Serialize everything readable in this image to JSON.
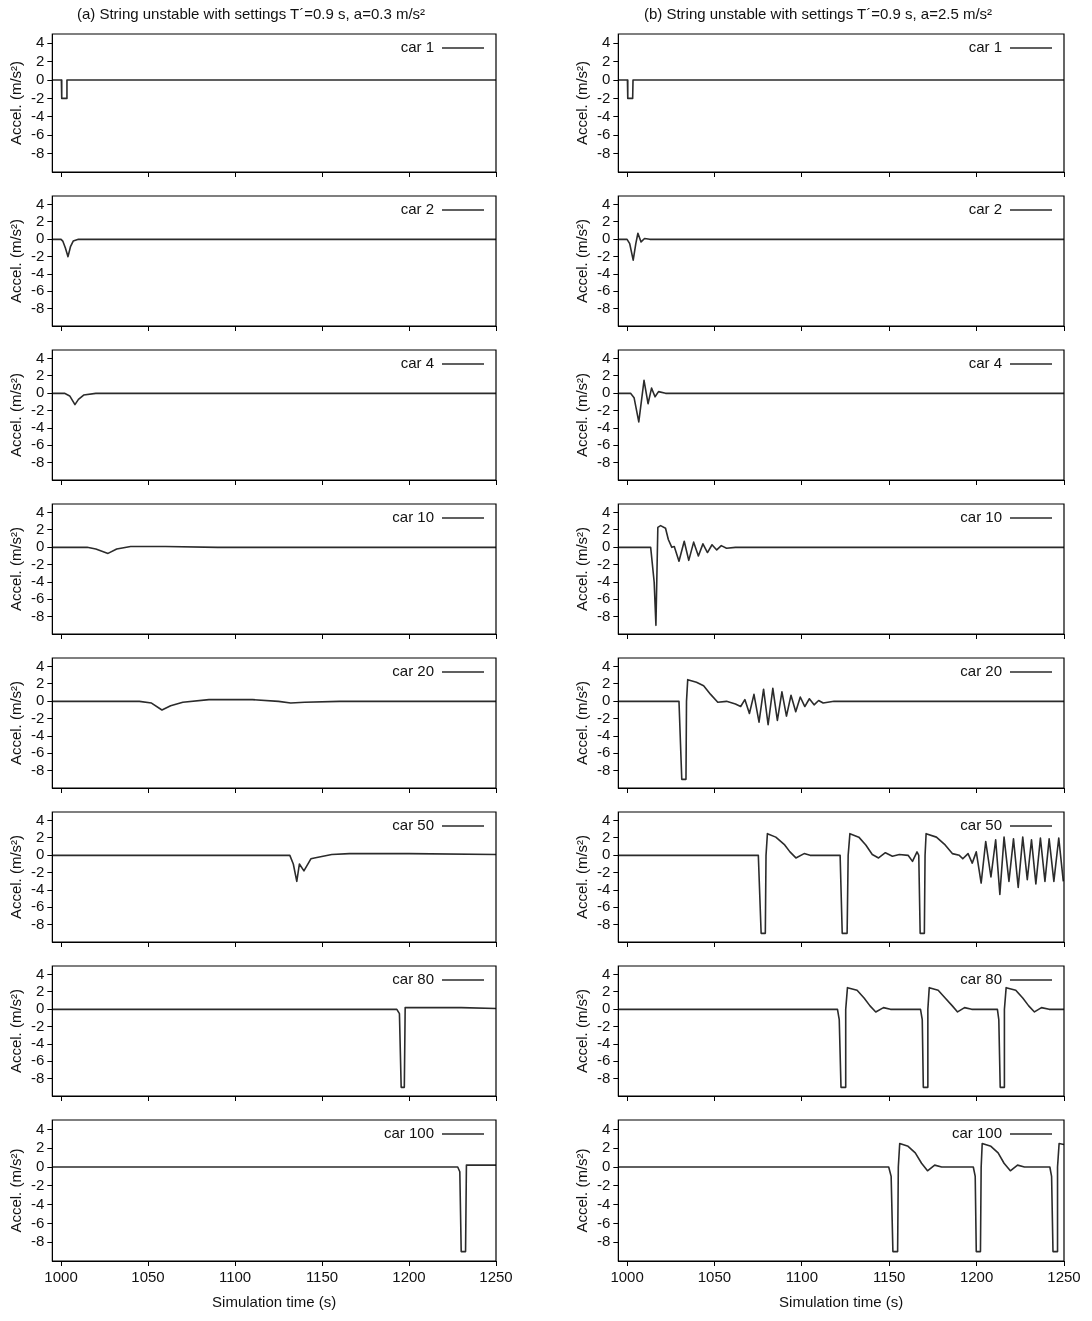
{
  "chart_data": [
    {
      "type": "line",
      "title": "(a) String unstable with settings T´=0.9 s, a=0.3 m/s²",
      "ylabel": "Accel. (m/s²)",
      "xlim": [
        995,
        1250
      ],
      "ylim": [
        -10,
        5
      ],
      "xticks": [
        1000,
        1050,
        1100,
        1150,
        1200,
        1250
      ],
      "yticks": [
        -8,
        -6,
        -4,
        -2,
        0,
        2,
        4
      ],
      "tick_labels": "y",
      "legend": "top right",
      "series": [
        {
          "name": "car 1",
          "color": "#2b2b2b",
          "x": [
            995,
            1000.2,
            1000.4,
            1003.2,
            1003.4,
            1250
          ],
          "values": [
            0,
            0,
            -2,
            -2,
            0,
            0
          ]
        }
      ]
    },
    {
      "type": "line",
      "ylabel": "Accel. (m/s²)",
      "xlim": [
        995,
        1250
      ],
      "ylim": [
        -10,
        5
      ],
      "xticks": [
        1000,
        1050,
        1100,
        1150,
        1200,
        1250
      ],
      "yticks": [
        -8,
        -6,
        -4,
        -2,
        0,
        2,
        4
      ],
      "tick_labels": "y",
      "legend": "top right",
      "series": [
        {
          "name": "car 2",
          "color": "#2b2b2b",
          "x": [
            995,
            1000,
            1001,
            1002.5,
            1004,
            1005.5,
            1007,
            1010,
            1250
          ],
          "values": [
            0,
            0,
            -0.2,
            -1,
            -2,
            -0.8,
            -0.2,
            0,
            0
          ]
        }
      ]
    },
    {
      "type": "line",
      "ylabel": "Accel. (m/s²)",
      "xlim": [
        995,
        1250
      ],
      "ylim": [
        -10,
        5
      ],
      "xticks": [
        1000,
        1050,
        1100,
        1150,
        1200,
        1250
      ],
      "yticks": [
        -8,
        -6,
        -4,
        -2,
        0,
        2,
        4
      ],
      "tick_labels": "y",
      "legend": "top right",
      "series": [
        {
          "name": "car 4",
          "color": "#2b2b2b",
          "x": [
            995,
            1002,
            1005,
            1008,
            1010,
            1013,
            1020,
            1250
          ],
          "values": [
            0,
            0,
            -0.3,
            -1.3,
            -0.7,
            -0.2,
            0,
            0
          ]
        }
      ]
    },
    {
      "type": "line",
      "ylabel": "Accel. (m/s²)",
      "xlim": [
        995,
        1250
      ],
      "ylim": [
        -10,
        5
      ],
      "xticks": [
        1000,
        1050,
        1100,
        1150,
        1200,
        1250
      ],
      "yticks": [
        -8,
        -6,
        -4,
        -2,
        0,
        2,
        4
      ],
      "tick_labels": "y",
      "legend": "top right",
      "series": [
        {
          "name": "car 10",
          "color": "#2b2b2b",
          "x": [
            995,
            1015,
            1020,
            1027,
            1032,
            1040,
            1060,
            1090,
            1250
          ],
          "values": [
            0,
            0,
            -0.2,
            -0.7,
            -0.2,
            0.1,
            0.1,
            0,
            0
          ]
        }
      ]
    },
    {
      "type": "line",
      "ylabel": "Accel. (m/s²)",
      "xlim": [
        995,
        1250
      ],
      "ylim": [
        -10,
        5
      ],
      "xticks": [
        1000,
        1050,
        1100,
        1150,
        1200,
        1250
      ],
      "yticks": [
        -8,
        -6,
        -4,
        -2,
        0,
        2,
        4
      ],
      "tick_labels": "y",
      "legend": "top right",
      "series": [
        {
          "name": "car 20",
          "color": "#2b2b2b",
          "x": [
            995,
            1045,
            1052,
            1058,
            1063,
            1070,
            1085,
            1110,
            1125,
            1132,
            1140,
            1160,
            1250
          ],
          "values": [
            0,
            0,
            -0.2,
            -1,
            -0.5,
            -0.1,
            0.2,
            0.2,
            0,
            -0.2,
            -0.1,
            0,
            0
          ]
        }
      ]
    },
    {
      "type": "line",
      "ylabel": "Accel. (m/s²)",
      "xlim": [
        995,
        1250
      ],
      "ylim": [
        -10,
        5
      ],
      "xticks": [
        1000,
        1050,
        1100,
        1150,
        1200,
        1250
      ],
      "yticks": [
        -8,
        -6,
        -4,
        -2,
        0,
        2,
        4
      ],
      "tick_labels": "y",
      "legend": "top right",
      "series": [
        {
          "name": "car 50",
          "color": "#2b2b2b",
          "x": [
            995,
            1131.5,
            1133.5,
            1135.5,
            1137,
            1139.6,
            1143.6,
            1145.6,
            1155.6,
            1165.7,
            1200,
            1250
          ],
          "values": [
            0,
            0,
            -1,
            -3,
            -1,
            -1.8,
            -0.4,
            -0.3,
            0.1,
            0.2,
            0.2,
            0.1
          ]
        }
      ]
    },
    {
      "type": "line",
      "ylabel": "Accel. (m/s²)",
      "xlim": [
        995,
        1250
      ],
      "ylim": [
        -10,
        5
      ],
      "xticks": [
        1000,
        1050,
        1100,
        1150,
        1200,
        1250
      ],
      "yticks": [
        -8,
        -6,
        -4,
        -2,
        0,
        2,
        4
      ],
      "tick_labels": "y",
      "legend": "top right",
      "series": [
        {
          "name": "car 80",
          "color": "#2b2b2b",
          "x": [
            995,
            1193,
            1194.5,
            1195.5,
            1197.3,
            1197.8,
            1210,
            1230,
            1250
          ],
          "values": [
            0,
            0,
            -0.5,
            -9,
            -9,
            0.2,
            0.2,
            0.2,
            0.1
          ]
        }
      ]
    },
    {
      "type": "line",
      "xlabel": "Simulation time (s)",
      "ylabel": "Accel. (m/s²)",
      "xlim": [
        995,
        1250
      ],
      "ylim": [
        -10,
        5
      ],
      "xticks": [
        1000,
        1050,
        1100,
        1150,
        1200,
        1250
      ],
      "yticks": [
        -8,
        -6,
        -4,
        -2,
        0,
        2,
        4
      ],
      "legend": "top right",
      "series": [
        {
          "name": "car 100",
          "color": "#2b2b2b",
          "x": [
            995,
            1228,
            1229.2,
            1230,
            1232.5,
            1233,
            1250
          ],
          "values": [
            0,
            0,
            -0.5,
            -9,
            -9,
            0.2,
            0.2
          ]
        }
      ]
    },
    {
      "type": "line",
      "title": "(b) String unstable with settings T´=0.9 s, a=2.5 m/s²",
      "ylabel": "Accel. (m/s²)",
      "xlim": [
        995,
        1250
      ],
      "ylim": [
        -10,
        5
      ],
      "xticks": [
        1000,
        1050,
        1100,
        1150,
        1200,
        1250
      ],
      "yticks": [
        -8,
        -6,
        -4,
        -2,
        0,
        2,
        4
      ],
      "tick_labels": "y",
      "legend": "top right",
      "series": [
        {
          "name": "car 1",
          "color": "#2b2b2b",
          "x": [
            995,
            1000.2,
            1000.4,
            1003.2,
            1003.4,
            1250
          ],
          "values": [
            0,
            0,
            -2,
            -2,
            0,
            0
          ]
        }
      ]
    },
    {
      "type": "line",
      "ylabel": "Accel. (m/s²)",
      "xlim": [
        995,
        1250
      ],
      "ylim": [
        -10,
        5
      ],
      "xticks": [
        1000,
        1050,
        1100,
        1150,
        1200,
        1250
      ],
      "yticks": [
        -8,
        -6,
        -4,
        -2,
        0,
        2,
        4
      ],
      "tick_labels": "y",
      "legend": "top right",
      "series": [
        {
          "name": "car 2",
          "color": "#2b2b2b",
          "x": [
            995,
            1000,
            1001.5,
            1003.5,
            1005,
            1006.2,
            1008,
            1010,
            1013,
            1250
          ],
          "values": [
            0,
            0,
            -0.5,
            -2.4,
            -0.5,
            0.7,
            -0.3,
            0.1,
            0,
            0
          ]
        }
      ]
    },
    {
      "type": "line",
      "ylabel": "Accel. (m/s²)",
      "xlim": [
        995,
        1250
      ],
      "ylim": [
        -10,
        5
      ],
      "xticks": [
        1000,
        1050,
        1100,
        1150,
        1200,
        1250
      ],
      "yticks": [
        -8,
        -6,
        -4,
        -2,
        0,
        2,
        4
      ],
      "tick_labels": "y",
      "legend": "top right",
      "series": [
        {
          "name": "car 4",
          "color": "#2b2b2b",
          "x": [
            995,
            1002,
            1004,
            1006.7,
            1009.7,
            1012,
            1014,
            1016,
            1018,
            1022,
            1250
          ],
          "values": [
            0,
            0,
            -0.5,
            -3.3,
            1.5,
            -1.2,
            0.6,
            -0.4,
            0.2,
            0,
            0
          ]
        }
      ]
    },
    {
      "type": "line",
      "ylabel": "Accel. (m/s²)",
      "xlim": [
        995,
        1250
      ],
      "ylim": [
        -10,
        5
      ],
      "xticks": [
        1000,
        1050,
        1100,
        1150,
        1200,
        1250
      ],
      "yticks": [
        -8,
        -6,
        -4,
        -2,
        0,
        2,
        4
      ],
      "tick_labels": "y",
      "legend": "top right",
      "series": [
        {
          "name": "car 10",
          "color": "#2b2b2b",
          "x": [
            995,
            1013.5,
            1015.5,
            1016.5,
            1017.6,
            1019.2,
            1022,
            1023.6,
            1025.6,
            1027,
            1029.7,
            1032.7,
            1035.3,
            1038.1,
            1040.8,
            1043.4,
            1046,
            1048.6,
            1051.3,
            1053.9,
            1056.9,
            1062,
            1250
          ],
          "values": [
            0,
            0,
            -4,
            -9,
            2.3,
            2.5,
            2.2,
            0.9,
            0,
            0.1,
            -1.6,
            0.7,
            -1.5,
            0.6,
            -1,
            0.4,
            -0.6,
            0.3,
            -0.3,
            0.2,
            -0.1,
            0,
            0
          ]
        }
      ]
    },
    {
      "type": "line",
      "ylabel": "Accel. (m/s²)",
      "xlim": [
        995,
        1250
      ],
      "ylim": [
        -10,
        5
      ],
      "xticks": [
        1000,
        1050,
        1100,
        1150,
        1200,
        1250
      ],
      "yticks": [
        -8,
        -6,
        -4,
        -2,
        0,
        2,
        4
      ],
      "tick_labels": "y",
      "legend": "top right",
      "series": [
        {
          "name": "car 20",
          "color": "#2b2b2b",
          "x": [
            995,
            1029.7,
            1031.3,
            1033.7,
            1034,
            1034.7,
            1039.7,
            1043.8,
            1047.8,
            1051.9,
            1056.9,
            1062,
            1065,
            1067.4,
            1070,
            1072.6,
            1075.5,
            1078.1,
            1080.7,
            1083.4,
            1086,
            1088.6,
            1091.2,
            1093.8,
            1096.5,
            1099.1,
            1101.7,
            1104.3,
            1107,
            1109.6,
            1112.2,
            1118.4,
            1250
          ],
          "values": [
            0,
            0,
            -9,
            -9,
            0,
            2.5,
            2.2,
            1.8,
            0.8,
            -0.1,
            0,
            -0.3,
            -0.6,
            0.2,
            -1.4,
            0.8,
            -2.4,
            1.4,
            -2.7,
            1.5,
            -2.2,
            1.1,
            -1.7,
            0.7,
            -1.2,
            0.5,
            -0.6,
            0.3,
            -0.4,
            0.1,
            -0.2,
            0,
            0
          ]
        }
      ]
    },
    {
      "type": "line",
      "ylabel": "Accel. (m/s²)",
      "xlim": [
        995,
        1250
      ],
      "ylim": [
        -10,
        5
      ],
      "xticks": [
        1000,
        1050,
        1100,
        1150,
        1200,
        1250
      ],
      "yticks": [
        -8,
        -6,
        -4,
        -2,
        0,
        2,
        4
      ],
      "tick_labels": "y",
      "legend": "top right",
      "series": [
        {
          "name": "car 50",
          "color": "#2b2b2b",
          "x": [
            995,
            1075.1,
            1076.7,
            1079.1,
            1079.5,
            1080.3,
            1085.1,
            1090.2,
            1093.2,
            1096.6,
            1101.3,
            1104.7,
            1110.4,
            1121.9,
            1123.1,
            1125.9,
            1126.5,
            1127.5,
            1132.6,
            1136.6,
            1140.3,
            1143.9,
            1147.8,
            1151.8,
            1155.8,
            1160.8,
            1163.3,
            1165.9,
            1166.9,
            1167.7,
            1170.1,
            1170.5,
            1171.1,
            1177,
            1182,
            1186.1,
            1190.1,
            1192.1,
            1195.1,
            1197.5,
            1199.8,
            1202.6,
            1205.2,
            1208.2,
            1210.9,
            1213.3,
            1215.7,
            1218.5,
            1221.1,
            1223.8,
            1226.4,
            1229,
            1231.4,
            1233.9,
            1236.5,
            1239.1,
            1241.5,
            1244.2,
            1247,
            1249.6
          ],
          "values": [
            0,
            0,
            -9,
            -9,
            0,
            2.5,
            2.1,
            1.2,
            0.4,
            -0.3,
            0.2,
            0,
            0,
            0,
            -9,
            -9,
            0,
            2.5,
            2.1,
            1.2,
            0.1,
            -0.3,
            0.3,
            -0.1,
            0.1,
            0,
            -0.7,
            0.4,
            0,
            -9,
            -9,
            0,
            2.5,
            2.1,
            1.2,
            0.2,
            0,
            -0.4,
            0.2,
            -0.9,
            0.4,
            -3.2,
            1.6,
            -2.5,
            1.8,
            -4.5,
            2.1,
            -3,
            1.9,
            -3.7,
            2.1,
            -2.8,
            1.8,
            -3.3,
            2,
            -3,
            1.9,
            -3,
            2,
            -3
          ]
        }
      ]
    },
    {
      "type": "line",
      "ylabel": "Accel. (m/s²)",
      "xlim": [
        995,
        1250
      ],
      "ylim": [
        -10,
        5
      ],
      "xticks": [
        1000,
        1050,
        1100,
        1150,
        1200,
        1250
      ],
      "yticks": [
        -8,
        -6,
        -4,
        -2,
        0,
        2,
        4
      ],
      "tick_labels": "y",
      "legend": "top right",
      "series": [
        {
          "name": "car 80",
          "color": "#2b2b2b",
          "x": [
            995,
            1120.4,
            1121.4,
            1122.4,
            1124.9,
            1125.1,
            1126.1,
            1131.6,
            1135.6,
            1139,
            1142.3,
            1146.7,
            1150.7,
            1167.9,
            1168.9,
            1169.5,
            1171.9,
            1172.1,
            1172.9,
            1178,
            1182,
            1186.1,
            1189.1,
            1193.1,
            1197.2,
            1211.9,
            1212.7,
            1213.5,
            1215.7,
            1215.9,
            1216.9,
            1222.4,
            1226.4,
            1229.8,
            1233.1,
            1237.1,
            1241.5,
            1250
          ],
          "values": [
            0,
            0,
            -1.2,
            -9,
            -9,
            0,
            2.5,
            2.2,
            1.3,
            0.4,
            -0.3,
            0.2,
            0,
            0,
            -1.2,
            -9,
            -9,
            0,
            2.5,
            2.2,
            1.3,
            0.4,
            -0.3,
            0.2,
            0,
            0,
            -1.2,
            -9,
            -9,
            0,
            2.5,
            2.2,
            1.3,
            0.4,
            -0.3,
            0.2,
            0,
            0
          ]
        }
      ]
    },
    {
      "type": "line",
      "xlabel": "Simulation time (s)",
      "ylabel": "Accel. (m/s²)",
      "xlim": [
        995,
        1250
      ],
      "ylim": [
        -10,
        5
      ],
      "xticks": [
        1000,
        1050,
        1100,
        1150,
        1200,
        1250
      ],
      "yticks": [
        -8,
        -6,
        -4,
        -2,
        0,
        2,
        4
      ],
      "legend": "top right",
      "series": [
        {
          "name": "car 100",
          "color": "#2b2b2b",
          "x": [
            995,
            1149.7,
            1151.1,
            1152.1,
            1154.8,
            1155.2,
            1156,
            1160.8,
            1164.9,
            1168.5,
            1171.9,
            1176,
            1180,
            1198.1,
            1199.2,
            1199.8,
            1202.2,
            1202.6,
            1203.2,
            1208.2,
            1212.3,
            1215.7,
            1219.3,
            1223.4,
            1227.4,
            1241.9,
            1242.9,
            1243.7,
            1246,
            1246.3,
            1247.2,
            1250
          ],
          "values": [
            0,
            0,
            -1,
            -9,
            -9,
            0,
            2.5,
            2.2,
            1.5,
            0.4,
            -0.4,
            0.2,
            0,
            0,
            -1,
            -9,
            -9,
            0,
            2.5,
            2.2,
            1.5,
            0.4,
            -0.4,
            0.2,
            0,
            0,
            -1,
            -9,
            -9,
            0,
            2.5,
            2.4
          ]
        }
      ]
    }
  ]
}
